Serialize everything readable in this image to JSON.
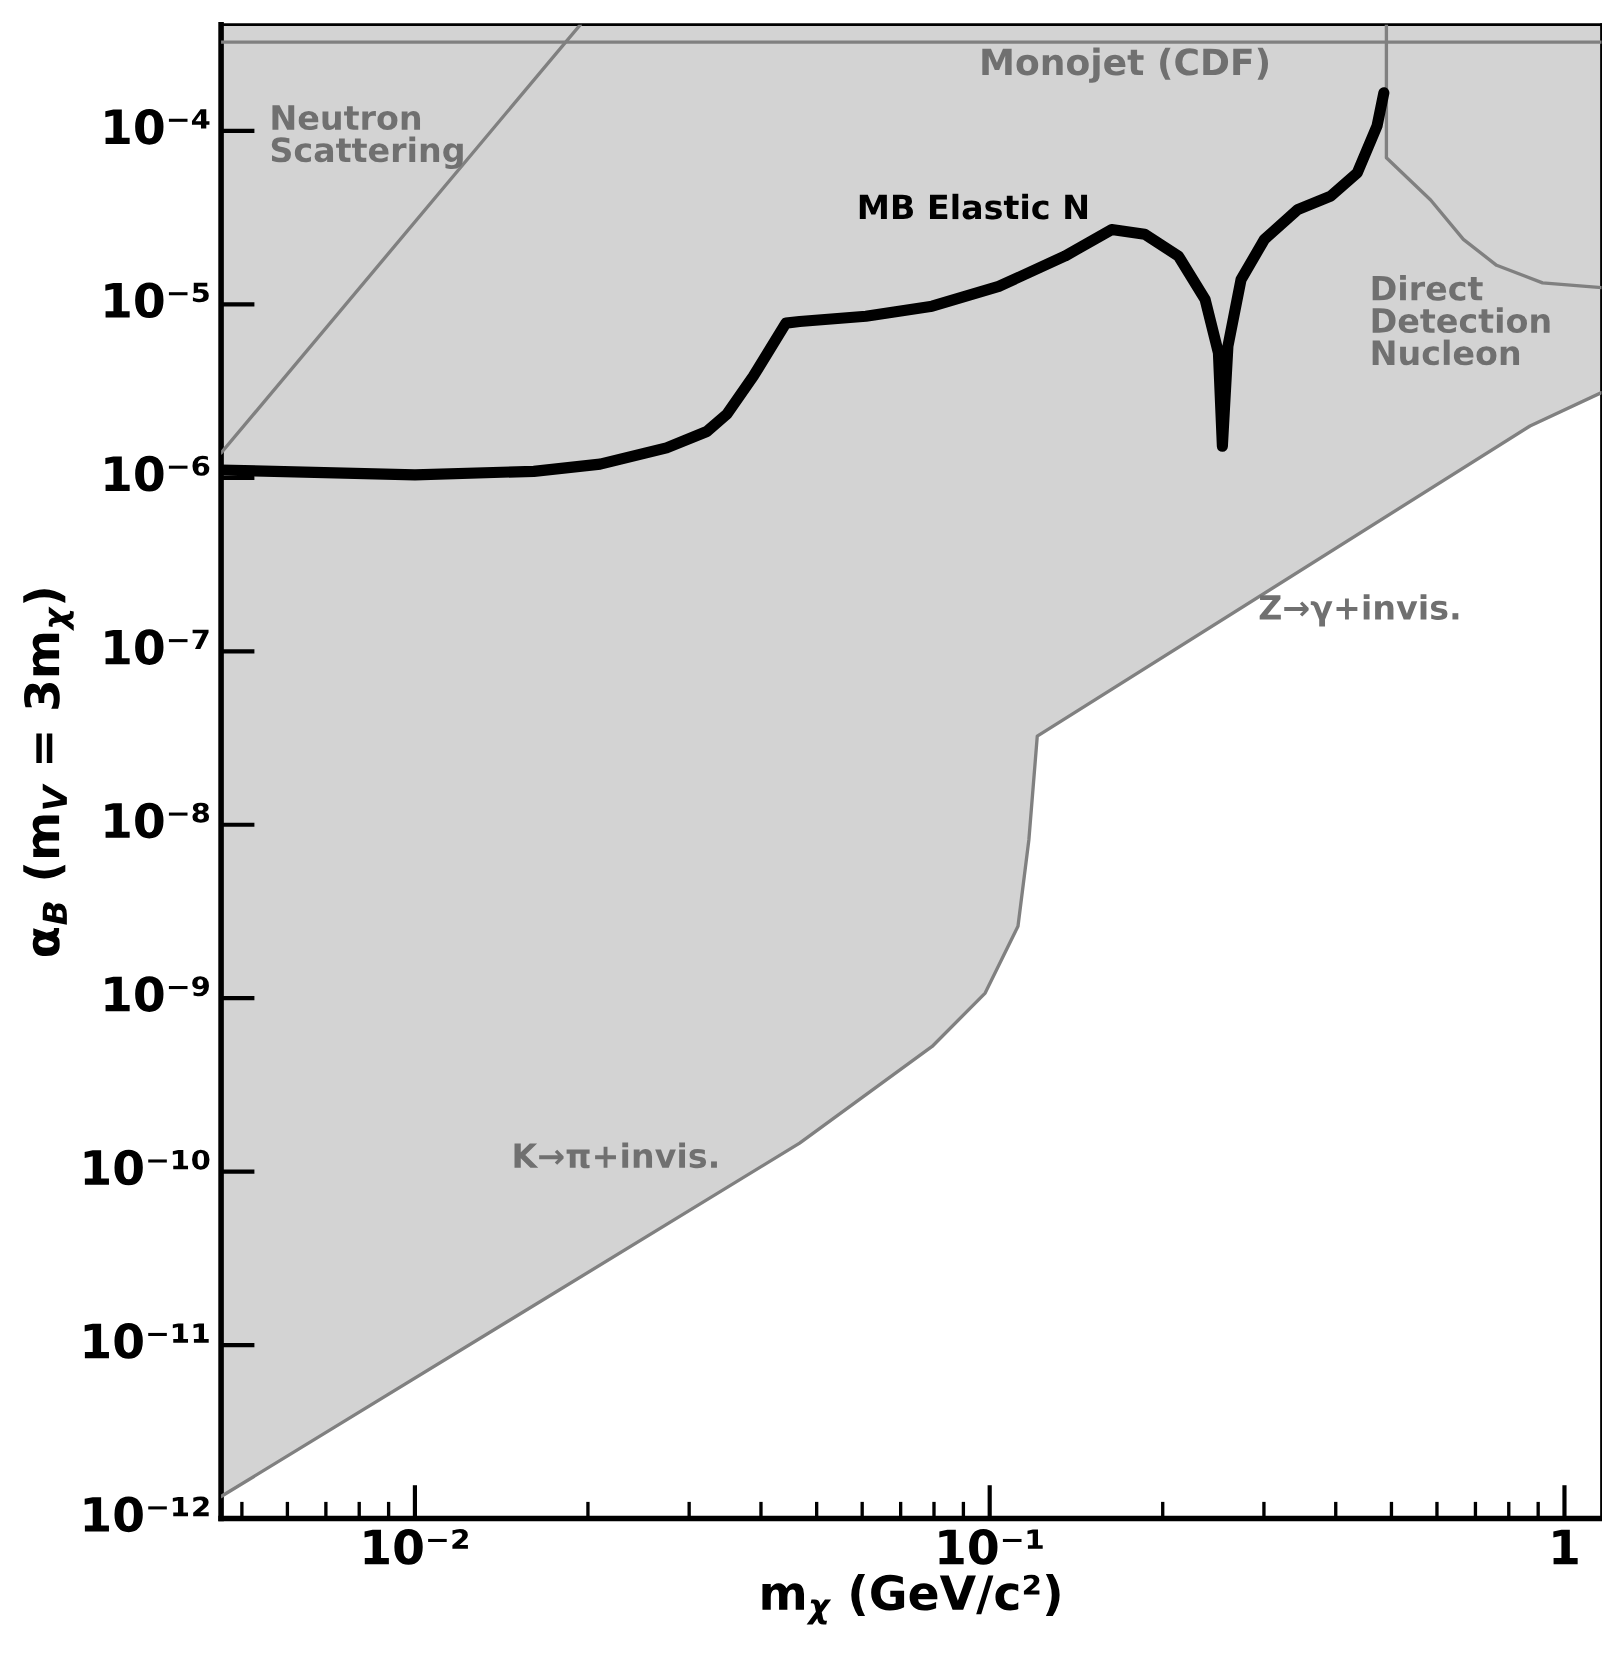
{
  "chart_data": {
    "type": "line",
    "xlabel": "m$_{χ}$ (GeV/c²)",
    "ylabel": "α$_{B}$ (m$_{V}$ = 3m$_{χ}$)",
    "log": "xy",
    "grid": false,
    "xlim": [
      0.0046,
      1.16
    ],
    "ylim": [
      1e-12,
      0.00041
    ],
    "xticks": [
      {
        "value": 0.01,
        "label": "10⁻²"
      },
      {
        "value": 0.1,
        "label": "10⁻¹"
      },
      1
    ],
    "yticks": [
      {
        "value": 1e-12,
        "label": "10⁻¹²"
      },
      {
        "value": 1e-11,
        "label": "10⁻¹¹"
      },
      {
        "value": 1e-10,
        "label": "10⁻¹⁰"
      },
      {
        "value": 1e-09,
        "label": "10⁻⁹"
      },
      {
        "value": 1e-08,
        "label": "10⁻⁸"
      },
      {
        "value": 1e-07,
        "label": "10⁻⁷"
      },
      {
        "value": 1e-06,
        "label": "10⁻⁶"
      },
      {
        "value": 1e-05,
        "label": "10⁻⁵"
      },
      {
        "value": 0.0001,
        "label": "10⁻⁴"
      }
    ],
    "series": [
      {
        "type": "line",
        "color": "#808080",
        "x": [
          0.0046,
          0.0467,
          0.0794,
          0.0982,
          0.112,
          0.117,
          0.121,
          0.871,
          1.16
        ],
        "values": [
          1.34e-12,
          1.46e-10,
          5.27e-10,
          1.07e-09,
          2.6e-09,
          8.2e-09,
          3.24e-08,
          1.99e-06,
          3.1e-06
        ],
        "lower": [
          1.34e-12,
          1.46e-10,
          5.27e-10,
          1.07e-09,
          2.6e-09,
          8.2e-09,
          3.24e-08,
          1.99e-06,
          3.1e-06
        ],
        "upper": [
          0.00041,
          0.00041,
          0.00041,
          0.00041,
          0.00041,
          0.00041,
          0.00041,
          0.00041,
          0.00041
        ]
      },
      {
        "type": "line",
        "color": "#808080",
        "x": [
          0.0046,
          0.0194
        ],
        "values": [
          1.39e-06,
          0.00041
        ]
      },
      {
        "type": "line",
        "color": "#808080",
        "x": [
          0.49,
          0.49,
          0.585,
          0.667,
          0.762,
          0.916,
          1.16
        ],
        "values": [
          0.00041,
          7e-05,
          4e-05,
          2.37e-05,
          1.68e-05,
          1.33e-05,
          1.25e-05
        ]
      },
      {
        "type": "line",
        "color": "#000000",
        "x": [
          0.0046,
          0.01,
          0.0161,
          0.021,
          0.0274,
          0.0322,
          0.0349,
          0.0388,
          0.0442,
          0.0467,
          0.0609,
          0.0794,
          0.1037,
          0.1352,
          0.163,
          0.186,
          0.213,
          0.237,
          0.25,
          0.254,
          0.2597,
          0.2737,
          0.3006,
          0.3434,
          0.392,
          0.436,
          0.472,
          0.485
        ],
        "values": [
          1.11e-06,
          1.04e-06,
          1.09e-06,
          1.2e-06,
          1.49e-06,
          1.85e-06,
          2.33e-06,
          3.86e-06,
          7.8e-06,
          7.96e-06,
          8.55e-06,
          9.77e-06,
          1.27e-05,
          1.9e-05,
          2.7e-05,
          2.54e-05,
          1.9e-05,
          1.07e-05,
          5.25e-06,
          1.52e-06,
          5.74e-06,
          1.39e-05,
          2.37e-05,
          3.52e-05,
          4.21e-05,
          5.73e-05,
          0.000107,
          0.000166
        ]
      }
    ],
    "ref_lines": [
      {
        "axis": "y",
        "value": 0.000325,
        "label": "Monojet (CDF)",
        "color": "#808080"
      }
    ],
    "annotations": [
      "Neutron\nScattering",
      "MB Elastic N",
      "Direct\nDetection\nNucleon",
      "Z→γ+invis.",
      "K→π+invis."
    ]
  }
}
